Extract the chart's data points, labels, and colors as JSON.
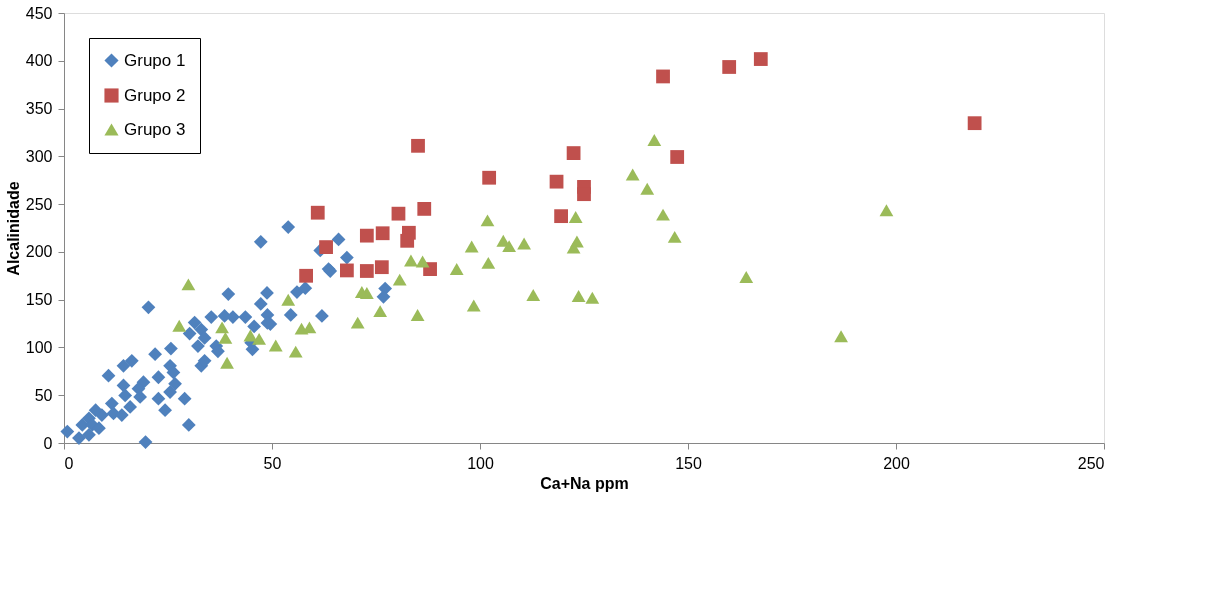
{
  "chart_data": {
    "type": "scatter",
    "xlabel": "Ca+Na ppm",
    "ylabel": "Alcalinidade",
    "xlim": [
      0,
      250
    ],
    "xticks": [
      0,
      50,
      100,
      150,
      200,
      250
    ],
    "ylim": [
      0,
      450
    ],
    "yticks": [
      0,
      50,
      100,
      150,
      200,
      250,
      300,
      350,
      400,
      450
    ],
    "grid": false,
    "legend": "top left",
    "series": [
      {
        "name": "Grupo 1",
        "color": "#4f81bd",
        "marker": "diamond",
        "x": [
          47.3,
          53.9,
          20.3,
          39.5,
          48.8,
          47.3,
          35.4,
          31.4,
          40.6,
          43.6,
          45.7,
          48.9,
          49.6,
          54.5,
          56,
          58,
          30.2,
          33,
          33.8,
          32.2,
          36.6,
          33,
          33.8,
          37,
          45,
          45.3,
          38.6,
          25.7,
          21.9,
          16.3,
          14.3,
          10.7,
          25.5,
          26.3,
          22.7,
          19.1,
          14.3,
          17.9,
          26.7,
          25.5,
          18.3,
          22.7,
          29,
          24.3,
          14.7,
          15.9,
          11.5,
          11.9,
          9.1,
          7.6,
          13.9,
          6,
          4.4,
          6.8,
          0.8,
          3.6,
          6,
          8.4,
          30,
          19.6,
          66,
          61.6,
          68,
          63.6,
          62,
          77.2,
          76.8,
          48.9,
          64
        ],
        "values": [
          210.5,
          226,
          142,
          155.8,
          157,
          145.5,
          131.8,
          126,
          131.8,
          131.8,
          122,
          134,
          124.5,
          134,
          158,
          162,
          114.5,
          118.7,
          110,
          101.4,
          101.4,
          80.8,
          86,
          96,
          105,
          98,
          133,
          98.8,
          92.9,
          86,
          80.8,
          70.5,
          80.8,
          73.9,
          68.8,
          63.6,
          60.2,
          56.8,
          61.9,
          53.3,
          48.2,
          46.4,
          46.4,
          34.4,
          49.8,
          37.8,
          41.3,
          31,
          29.2,
          34.4,
          29.2,
          25.8,
          18.9,
          18.9,
          12,
          5.2,
          8.6,
          15.5,
          18.9,
          1,
          213,
          201.5,
          194,
          182,
          133,
          161.6,
          153,
          125.6,
          180
        ]
      },
      {
        "name": "Grupo 2",
        "color": "#c0504d",
        "marker": "square",
        "x": [
          85.1,
          61,
          63,
          58.2,
          68,
          72.8,
          76.4,
          72.8,
          76.6,
          80.4,
          82.9,
          82.5,
          86.6,
          88,
          102.2,
          122.5,
          118.4,
          119.5,
          125,
          125,
          144,
          159.9,
          167.5,
          147.4,
          218.9
        ],
        "values": [
          311,
          241,
          205,
          175,
          180.6,
          180,
          184,
          217,
          219.5,
          240,
          220,
          211.6,
          245,
          182,
          277.6,
          303.4,
          273.5,
          237.4,
          268,
          260.4,
          383.6,
          393.5,
          401.8,
          299.3,
          334.7
        ]
      },
      {
        "name": "Grupo 3",
        "color": "#9bbb59",
        "marker": "triangle",
        "x": [
          141.9,
          136.7,
          140.2,
          144,
          146.8,
          123,
          123.3,
          122.5,
          101.8,
          105.6,
          107,
          110.6,
          102,
          112.8,
          123.7,
          127,
          164,
          197.7,
          186.8,
          98,
          98.5,
          94.4,
          86.2,
          83.4,
          80.7,
          85,
          76,
          70.6,
          72.8,
          71.6,
          57.1,
          59,
          55.7,
          50.9,
          53.9,
          29.9,
          27.7,
          38,
          38.8,
          39.2,
          44.8,
          46.9
        ],
        "values": [
          317,
          281,
          266,
          239,
          215.7,
          236.6,
          210.8,
          204.6,
          233,
          211.6,
          206,
          208.8,
          188.5,
          154.8,
          153.8,
          152,
          173.7,
          243.6,
          111.8,
          205.7,
          143.8,
          182,
          190,
          191,
          171,
          134,
          138,
          126,
          157,
          158,
          119.7,
          121,
          95.6,
          102,
          150,
          166,
          122.8,
          121,
          110,
          84,
          112.5,
          109
        ]
      }
    ]
  }
}
